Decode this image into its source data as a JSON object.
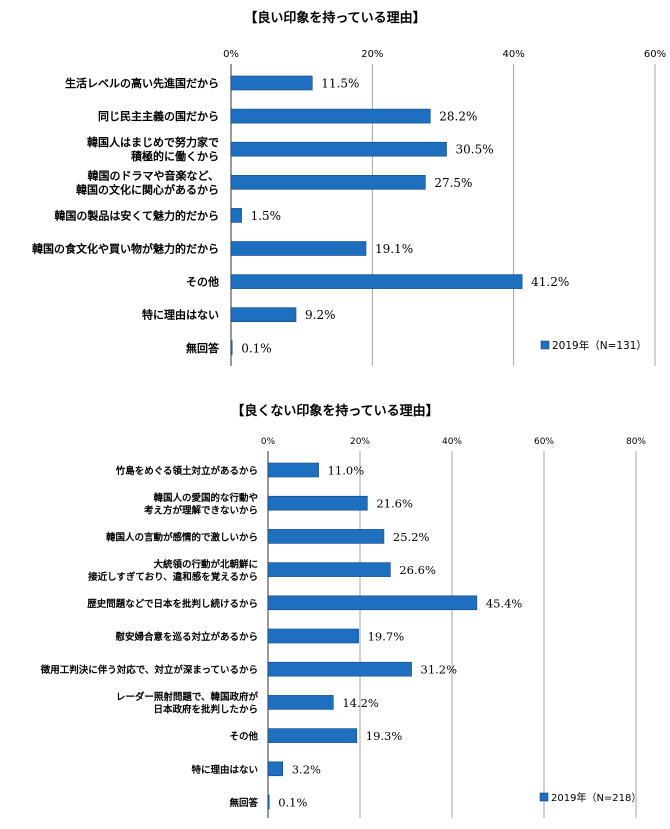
{
  "colors": {
    "bar": "#1f6fc0",
    "bar_stroke": "#14487e",
    "grid": "#9a9a9a",
    "text": "#000000"
  },
  "chart_data": [
    {
      "type": "bar",
      "orientation": "horizontal",
      "title": "【良い印象を持っている理由】",
      "xlim": [
        0,
        60
      ],
      "ticks": [
        "0%",
        "20%",
        "40%",
        "60%"
      ],
      "categories": [
        "生活レベルの高い先進国だから",
        "同じ民主主義の国だから",
        "韓国人はまじめで努力家で\n積極的に働くから",
        "韓国のドラマや音楽など、\n韓国の文化に関心があるから",
        "韓国の製品は安くて魅力的だから",
        "韓国の食文化や買い物が魅力的だから",
        "その他",
        "特に理由はない",
        "無回答"
      ],
      "values": [
        11.5,
        28.2,
        30.5,
        27.5,
        1.5,
        19.1,
        41.2,
        9.2,
        0.1
      ],
      "value_labels": [
        "11.5%",
        "28.2%",
        "30.5%",
        "27.5%",
        "1.5%",
        "19.1%",
        "41.2%",
        "9.2%",
        "0.1%"
      ],
      "legend": "2019年（N=131）",
      "legend_position": "bottom-right"
    },
    {
      "type": "bar",
      "orientation": "horizontal",
      "title": "【良くない印象を持っている理由】",
      "xlim": [
        0,
        80
      ],
      "ticks": [
        "0%",
        "20%",
        "40%",
        "60%",
        "80%"
      ],
      "categories": [
        "竹島をめぐる領土対立があるから",
        "韓国人の愛国的な行動や\n考え方が理解できないから",
        "韓国人の言動が感情的で激しいから",
        "大統領の行動が北朝鮮に\n接近しすぎており、違和感を覚えるから",
        "歴史問題などで日本を批判し続けるから",
        "慰安婦合意を巡る対立があるから",
        "徴用工判決に伴う対応で、対立が深まっているから",
        "レーダー照射問題で、韓国政府が\n日本政府を批判したから",
        "その他",
        "特に理由はない",
        "無回答"
      ],
      "values": [
        11.0,
        21.6,
        25.2,
        26.6,
        45.4,
        19.7,
        31.2,
        14.2,
        19.3,
        3.2,
        0.1
      ],
      "value_labels": [
        "11.0%",
        "21.6%",
        "25.2%",
        "26.6%",
        "45.4%",
        "19.7%",
        "31.2%",
        "14.2%",
        "19.3%",
        "3.2%",
        "0.1%"
      ],
      "legend": "2019年（N=218）",
      "legend_position": "bottom-right"
    }
  ]
}
